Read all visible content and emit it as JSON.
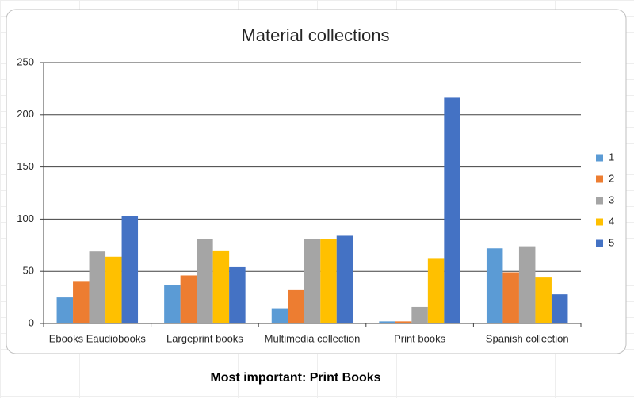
{
  "chart_data": {
    "type": "bar",
    "title": "Material collections",
    "categories": [
      "Ebooks Eaudiobooks",
      "Largeprint books",
      "Multimedia collection",
      "Print books",
      "Spanish collection"
    ],
    "series": [
      {
        "name": "1",
        "color": "#5b9bd5",
        "values": [
          25,
          37,
          14,
          2,
          72
        ]
      },
      {
        "name": "2",
        "color": "#ed7d31",
        "values": [
          40,
          46,
          32,
          2,
          49
        ]
      },
      {
        "name": "3",
        "color": "#a5a5a5",
        "values": [
          69,
          81,
          81,
          16,
          74
        ]
      },
      {
        "name": "4",
        "color": "#ffc000",
        "values": [
          64,
          70,
          81,
          62,
          44
        ]
      },
      {
        "name": "5",
        "color": "#4472c4",
        "values": [
          103,
          54,
          84,
          217,
          28
        ]
      }
    ],
    "ylim": [
      0,
      250
    ],
    "yticks": [
      0,
      50,
      100,
      150,
      200,
      250
    ],
    "grid": true,
    "legend": "right"
  },
  "caption": "Most important:  Print Books"
}
